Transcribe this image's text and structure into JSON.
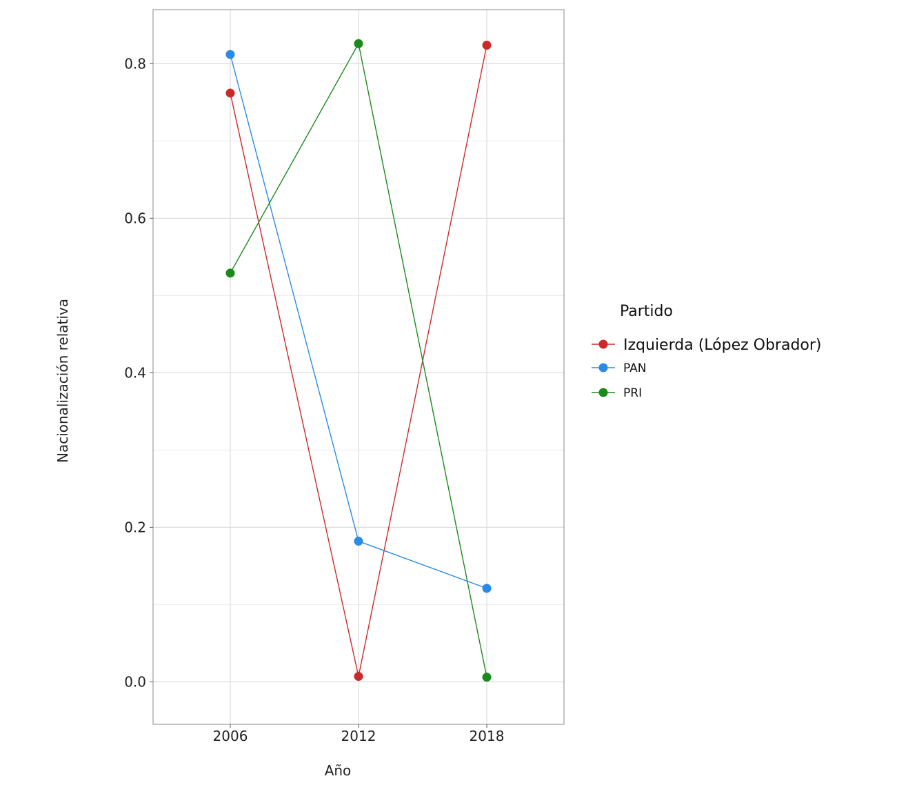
{
  "chart_data": {
    "type": "line",
    "x": [
      "2006",
      "2012",
      "2018"
    ],
    "xlabel": "Año",
    "ylabel": "Nacionalización relativa",
    "ylim": [
      -0.055,
      0.87
    ],
    "y_ticks": [
      "0.0",
      "0.2",
      "0.4",
      "0.6",
      "0.8"
    ],
    "grid": true,
    "legend": {
      "title": "Partido",
      "placement": "right"
    },
    "series": [
      {
        "name": "Izquierda (López Obrador)",
        "color": "#cc2a2a",
        "values": [
          0.762,
          0.007,
          0.824
        ]
      },
      {
        "name": "PAN",
        "color": "#2a8ae8",
        "values": [
          0.812,
          0.182,
          0.121
        ]
      },
      {
        "name": "PRI",
        "color": "#1a8a1a",
        "values": [
          0.529,
          0.826,
          0.006
        ]
      }
    ]
  }
}
